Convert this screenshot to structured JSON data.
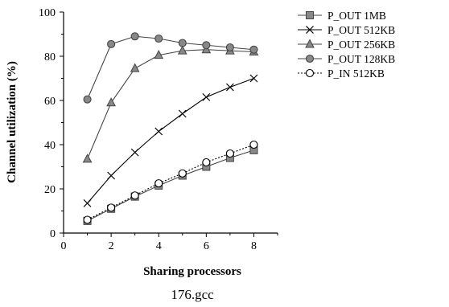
{
  "chart_data": {
    "type": "line",
    "title": "",
    "caption": "176.gcc",
    "xlabel": "Sharing processors",
    "ylabel": "Channel utilization (%)",
    "xlim": [
      0,
      9
    ],
    "ylim": [
      0,
      100
    ],
    "xticks": [
      0,
      2,
      4,
      6,
      8
    ],
    "yticks": [
      0,
      20,
      40,
      60,
      80,
      100
    ],
    "grid": false,
    "legend_position": "top-right",
    "x": [
      1,
      2,
      3,
      4,
      5,
      6,
      7,
      8
    ],
    "series": [
      {
        "name": "P_OUT 1MB",
        "marker": "square",
        "line": "solid",
        "color": "#444444",
        "fill": "#888888",
        "values": [
          5.5,
          11,
          16.5,
          21.5,
          26,
          30,
          34,
          37.5
        ]
      },
      {
        "name": "P_OUT 512KB",
        "marker": "x",
        "line": "solid",
        "color": "#000000",
        "fill": "none",
        "values": [
          13.5,
          26,
          36.5,
          46,
          54,
          61.5,
          66,
          70
        ]
      },
      {
        "name": "P_OUT 256KB",
        "marker": "triangle",
        "line": "solid",
        "color": "#444444",
        "fill": "#888888",
        "values": [
          33.5,
          59,
          74.5,
          80.5,
          82.5,
          83,
          82.5,
          82
        ]
      },
      {
        "name": "P_OUT 128KB",
        "marker": "circle",
        "line": "solid",
        "color": "#444444",
        "fill": "#888888",
        "values": [
          60.5,
          85.5,
          89,
          88,
          86,
          85,
          84,
          83
        ]
      },
      {
        "name": "P_IN 512KB",
        "marker": "open-circle",
        "line": "dotted",
        "color": "#000000",
        "fill": "#ffffff",
        "values": [
          6,
          11.5,
          17,
          22.5,
          27,
          32,
          36,
          40
        ]
      }
    ]
  }
}
